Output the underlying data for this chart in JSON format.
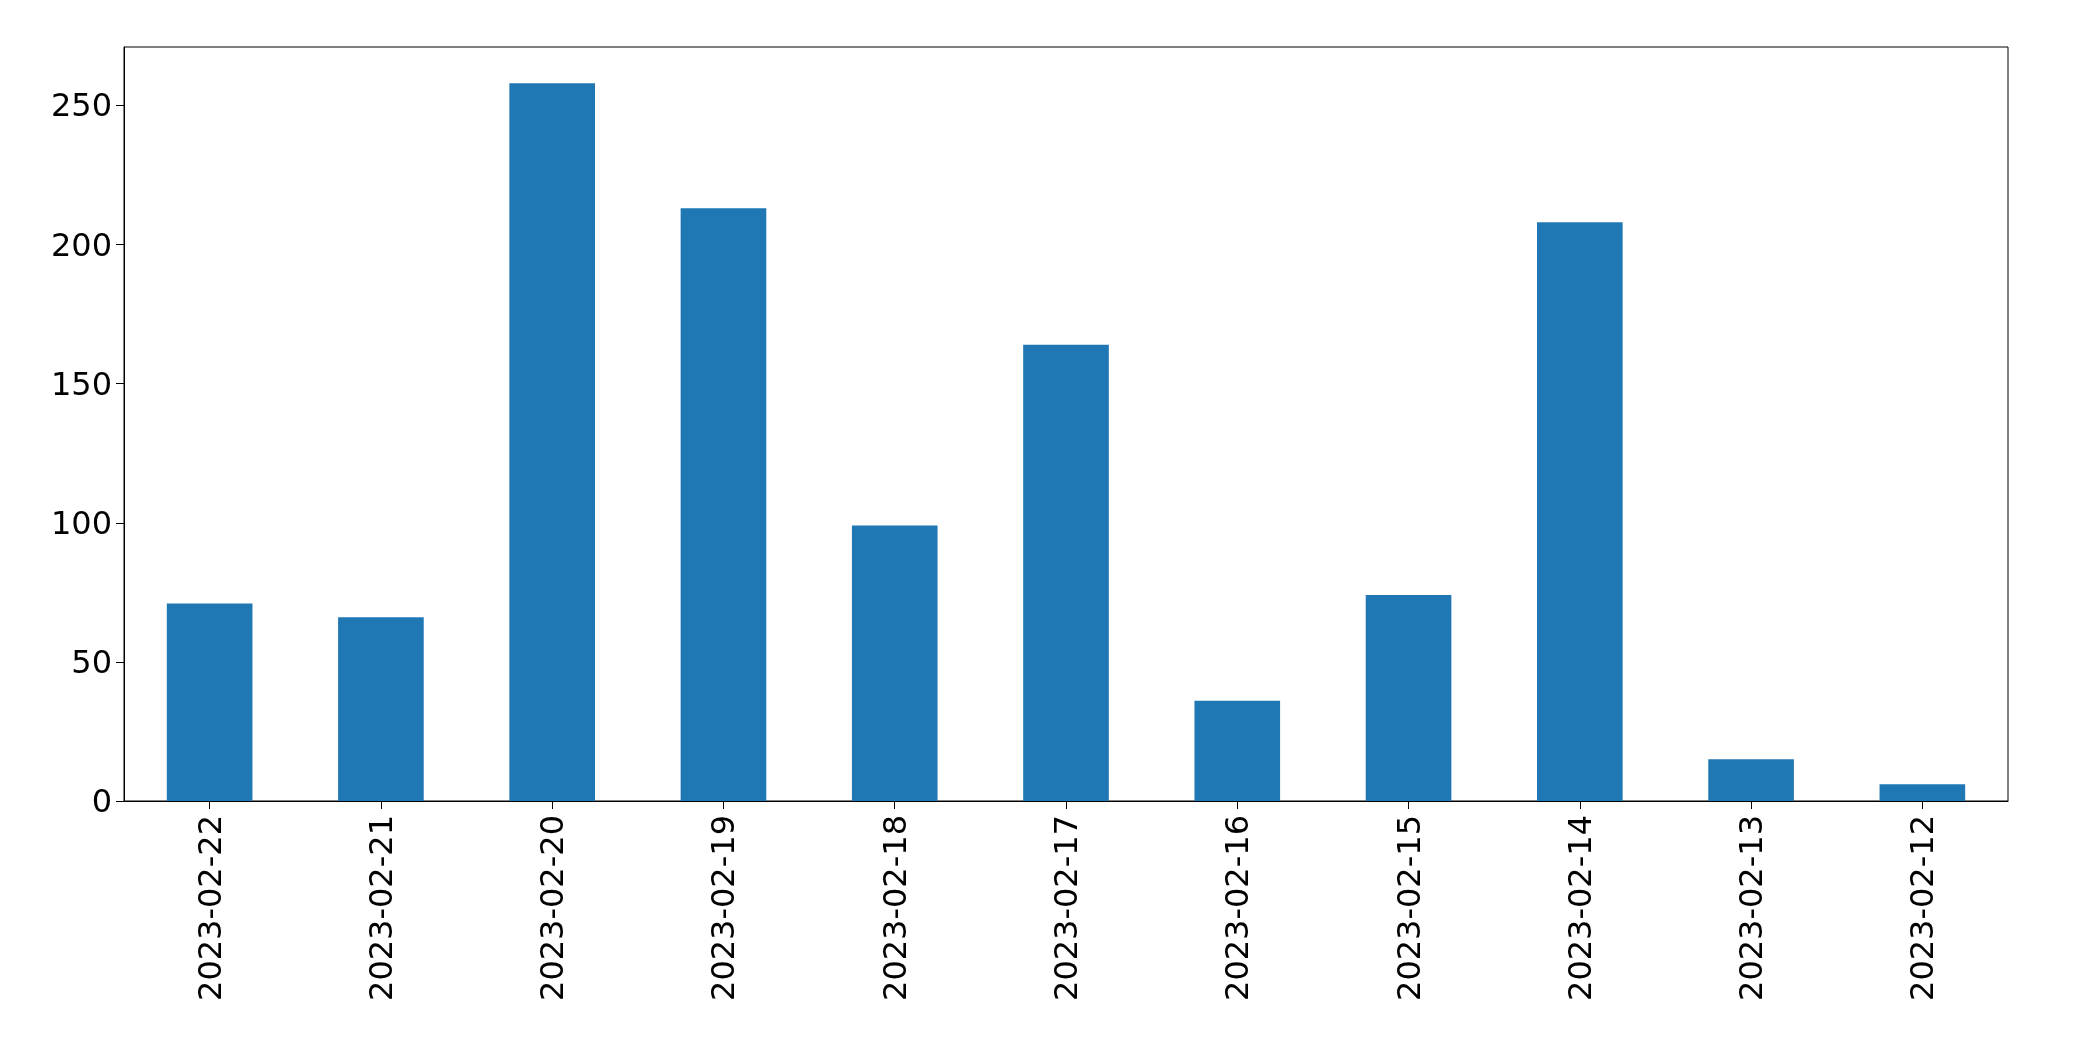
{
  "chart_data": {
    "type": "bar",
    "categories": [
      "2023-02-22",
      "2023-02-21",
      "2023-02-20",
      "2023-02-19",
      "2023-02-18",
      "2023-02-17",
      "2023-02-16",
      "2023-02-15",
      "2023-02-14",
      "2023-02-13",
      "2023-02-12"
    ],
    "values": [
      71,
      66,
      258,
      213,
      99,
      164,
      36,
      74,
      208,
      15,
      6
    ],
    "color": "#1f77b4",
    "ylim": [
      0,
      271
    ],
    "yticks": [
      0,
      50,
      100,
      150,
      200,
      250
    ],
    "grid": false
  }
}
